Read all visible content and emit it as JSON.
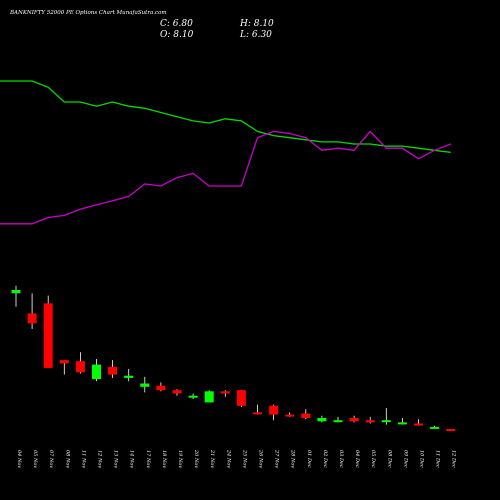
{
  "chart_data": {
    "type": "candlestick",
    "title": "BANKNIFTY 52000 PE Options Chart MunafaSutra.com",
    "ohlc_readout": {
      "close": "C: 6.80",
      "open": "O: 8.10",
      "high": "H: 8.10",
      "low": "L: 6.30"
    },
    "x_labels": [
      "04 Nov",
      "05 Nov",
      "07 Nov",
      "08 Nov",
      "11 Nov",
      "12 Nov",
      "13 Nov",
      "14 Nov",
      "17 Nov",
      "18 Nov",
      "19 Nov",
      "20 Nov",
      "21 Nov",
      "24 Nov",
      "25 Nov",
      "26 Nov",
      "27 Nov",
      "28 Nov",
      "01 Dec",
      "02 Dec",
      "03 Dec",
      "04 Dec",
      "05 Dec",
      "08 Dec",
      "09 Dec",
      "10 Dec",
      "11 Dec",
      "12 Dec"
    ],
    "candles": [
      {
        "o": 130,
        "h": 137,
        "l": 118,
        "c": 133
      },
      {
        "o": 112,
        "h": 130,
        "l": 98,
        "c": 103
      },
      {
        "o": 121,
        "h": 128,
        "l": 63,
        "c": 63
      },
      {
        "o": 70,
        "h": 70,
        "l": 57,
        "c": 67
      },
      {
        "o": 69,
        "h": 77,
        "l": 58,
        "c": 59
      },
      {
        "o": 53,
        "h": 71,
        "l": 51,
        "c": 66
      },
      {
        "o": 64,
        "h": 70,
        "l": 54,
        "c": 57
      },
      {
        "o": 54,
        "h": 62,
        "l": 51,
        "c": 56
      },
      {
        "o": 46,
        "h": 55,
        "l": 41,
        "c": 49
      },
      {
        "o": 47,
        "h": 50,
        "l": 42,
        "c": 43
      },
      {
        "o": 43,
        "h": 44,
        "l": 38,
        "c": 40
      },
      {
        "o": 37,
        "h": 40,
        "l": 35,
        "c": 38
      },
      {
        "o": 32,
        "h": 43,
        "l": 32,
        "c": 42
      },
      {
        "o": 42,
        "h": 43,
        "l": 37,
        "c": 40
      },
      {
        "o": 43,
        "h": 43,
        "l": 28,
        "c": 29
      },
      {
        "o": 23,
        "h": 30,
        "l": 21,
        "c": 22
      },
      {
        "o": 29,
        "h": 30,
        "l": 16,
        "c": 21
      },
      {
        "o": 21,
        "h": 23,
        "l": 19,
        "c": 20
      },
      {
        "o": 22,
        "h": 26,
        "l": 17,
        "c": 18
      },
      {
        "o": 15,
        "h": 20,
        "l": 14,
        "c": 18
      },
      {
        "o": 16,
        "h": 19,
        "l": 14,
        "c": 16
      },
      {
        "o": 18,
        "h": 20,
        "l": 14,
        "c": 15
      },
      {
        "o": 16,
        "h": 19,
        "l": 13,
        "c": 14
      },
      {
        "o": 15,
        "h": 27,
        "l": 12,
        "c": 16
      },
      {
        "o": 14,
        "h": 18,
        "l": 12,
        "c": 14
      },
      {
        "o": 13,
        "h": 17,
        "l": 11,
        "c": 12
      },
      {
        "o": 10,
        "h": 11,
        "l": 9,
        "c": 10
      },
      {
        "o": 8.1,
        "h": 8.1,
        "l": 6.3,
        "c": 6.8
      }
    ],
    "price_range": [
      0,
      160
    ],
    "moving_averages": [
      {
        "color": "#00dd00",
        "values": [
          90,
          90,
          87,
          80,
          80,
          78,
          80,
          78,
          77,
          75,
          73,
          71,
          70,
          72,
          71,
          66,
          64,
          63,
          62,
          61,
          61,
          60,
          60,
          59,
          59,
          58,
          57,
          56
        ]
      },
      {
        "color": "#cc00cc",
        "values": [
          22,
          22,
          25,
          26,
          29,
          31,
          33,
          35,
          41,
          40,
          44,
          46,
          40,
          40,
          40,
          63,
          66,
          65,
          63,
          57,
          58,
          57,
          66,
          58,
          58,
          53,
          57,
          60
        ]
      }
    ],
    "ma_range": [
      0,
      100
    ],
    "colors": {
      "up": "#00ff00",
      "down": "#ff0000",
      "wick": "#ffffff",
      "background": "#000000",
      "text": "#ffffff"
    }
  }
}
